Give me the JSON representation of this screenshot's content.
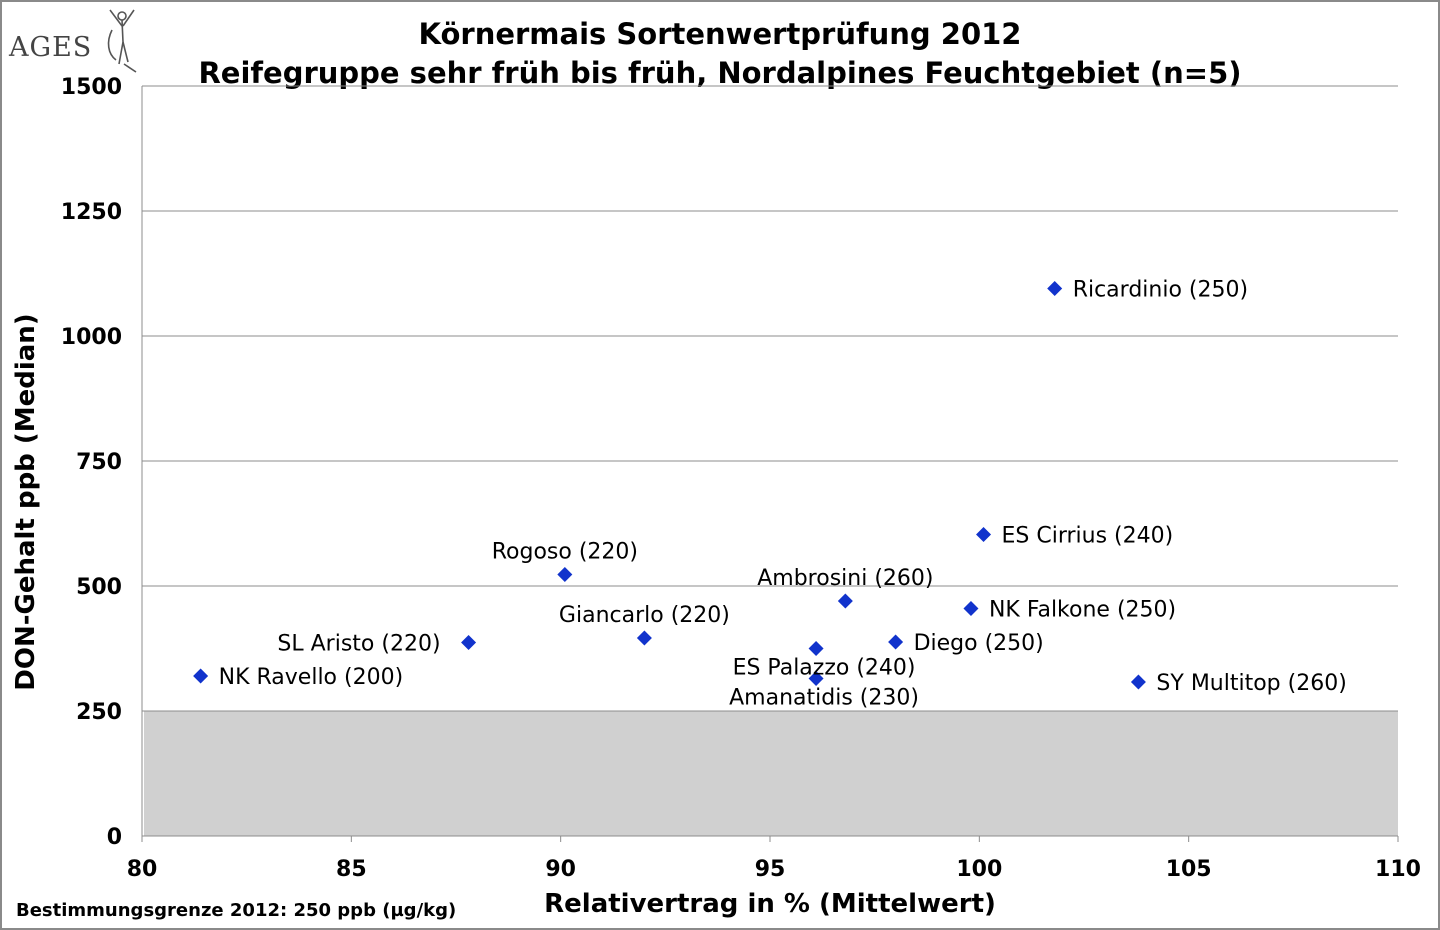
{
  "logo": {
    "text": "AGES"
  },
  "chart_data": {
    "type": "scatter",
    "title": "Körnermais Sortenwertprüfung 2012",
    "subtitle": "Reifegruppe sehr früh bis früh, Nordalpines Feuchtgebiet (n=5)",
    "xlabel": "Relativertrag  in % (Mittelwert)",
    "ylabel": "DON-Gehalt ppb (Median)",
    "xlim": [
      80,
      110
    ],
    "ylim": [
      0,
      1500
    ],
    "xticks": [
      80,
      85,
      90,
      95,
      100,
      105,
      110
    ],
    "yticks": [
      0,
      250,
      500,
      750,
      1000,
      1250,
      1500
    ],
    "grid": "horizontal",
    "marker": "diamond",
    "marker_color": "#1133cc",
    "limit_band": {
      "from": 0,
      "to": 250,
      "color": "#d0d0d0"
    },
    "footnote": "Bestimmungsgrenze 2012: 250 ppb (µg/kg)",
    "points": [
      {
        "label": "Ricardinio (250)",
        "x": 101.8,
        "y": 1095,
        "pos": "right"
      },
      {
        "label": "ES Cirrius (240)",
        "x": 100.1,
        "y": 603,
        "pos": "right"
      },
      {
        "label": "Rogoso (220)",
        "x": 90.1,
        "y": 523,
        "pos": "above"
      },
      {
        "label": "Ambrosini (260)",
        "x": 96.8,
        "y": 470,
        "pos": "above"
      },
      {
        "label": "NK Falkone (250)",
        "x": 99.8,
        "y": 455,
        "pos": "right"
      },
      {
        "label": "Giancarlo (220)",
        "x": 92.0,
        "y": 396,
        "pos": "above"
      },
      {
        "label": "SL Aristo (220)",
        "x": 87.8,
        "y": 387,
        "pos": "left"
      },
      {
        "label": "Diego (250)",
        "x": 98.0,
        "y": 388,
        "pos": "right"
      },
      {
        "label": "ES Palazzo (240)",
        "x": 96.1,
        "y": 375,
        "pos": "below"
      },
      {
        "label": "NK Ravello (200)",
        "x": 81.4,
        "y": 320,
        "pos": "right"
      },
      {
        "label": "Amanatidis (230)",
        "x": 96.1,
        "y": 315,
        "pos": "below"
      },
      {
        "label": "SY Multitop (260)",
        "x": 103.8,
        "y": 308,
        "pos": "right"
      }
    ]
  }
}
